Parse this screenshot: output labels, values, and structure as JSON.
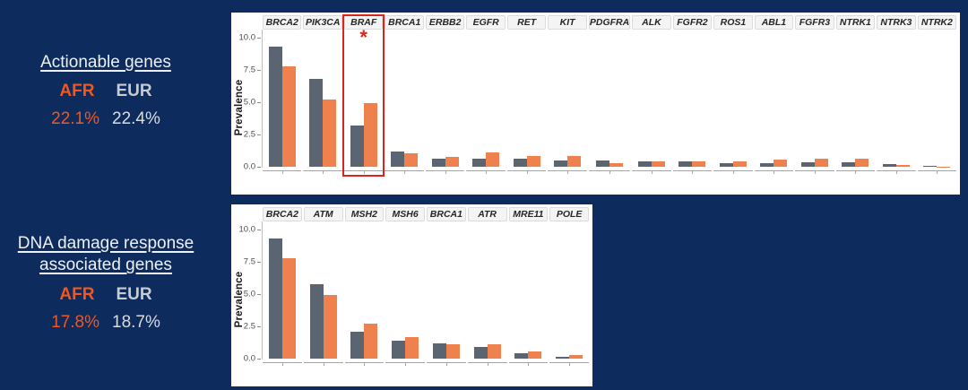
{
  "slide": {
    "background": "#0D2B5C"
  },
  "colors": {
    "navy_background": "#0D2B5C",
    "bar_gray_eur": "#5B6471",
    "bar_orange_afr": "#EF814E",
    "afr_text_orange": "#F2571E",
    "eur_label_gray": "#C7CBD2",
    "eur_value_gray": "#D9DCDF",
    "title_white": "#EDF0F4",
    "highlight_red": "#D8251D"
  },
  "legend_blocks": [
    {
      "id": "actionable",
      "title_lines": [
        "Actionable genes"
      ],
      "groups": [
        {
          "label": "AFR",
          "value": "22.1%"
        },
        {
          "label": "EUR",
          "value": "22.4%"
        }
      ]
    },
    {
      "id": "ddr",
      "title_lines": [
        "DNA damage response",
        "associated genes"
      ],
      "groups": [
        {
          "label": "AFR",
          "value": "17.8%"
        },
        {
          "label": "EUR",
          "value": "18.7%"
        }
      ]
    }
  ],
  "chart_data": [
    {
      "type": "bar",
      "title": "Actionable genes prevalence by gene",
      "ylabel": "Prevalence",
      "ylim": [
        0,
        10.4
      ],
      "grid": false,
      "legend_position": "none",
      "yticks": [
        0,
        2.5,
        5,
        7.5,
        10
      ],
      "ytick_labels": [
        "0.0",
        "2.5",
        "5.0",
        "7.5",
        "10.0"
      ],
      "categories": [
        "BRCA2",
        "PIK3CA",
        "BRAF",
        "BRCA1",
        "ERBB2",
        "EGFR",
        "RET",
        "KIT",
        "PDGFRA",
        "ALK",
        "FGFR2",
        "ROS1",
        "ABL1",
        "FGFR3",
        "NTRK1",
        "NTRK3",
        "NTRK2"
      ],
      "series": [
        {
          "name": "EUR",
          "color": "#5B6471",
          "values": [
            9.3,
            6.8,
            3.2,
            1.15,
            0.65,
            0.65,
            0.65,
            0.5,
            0.5,
            0.4,
            0.4,
            0.3,
            0.3,
            0.35,
            0.35,
            0.2,
            0.05
          ]
        },
        {
          "name": "AFR",
          "color": "#EF814E",
          "values": [
            7.8,
            5.2,
            4.9,
            1.05,
            0.75,
            1.1,
            0.8,
            0.85,
            0.3,
            0.45,
            0.45,
            0.45,
            0.55,
            0.6,
            0.6,
            0.12,
            0.03
          ]
        }
      ],
      "highlight": {
        "category": "BRAF",
        "marker": "*"
      }
    },
    {
      "type": "bar",
      "title": "DNA damage response associated genes prevalence by gene",
      "ylabel": "Prevalence",
      "ylim": [
        0,
        10.4
      ],
      "grid": false,
      "legend_position": "none",
      "yticks": [
        0,
        2.5,
        5,
        7.5,
        10
      ],
      "ytick_labels": [
        "0.0",
        "2.5",
        "5.0",
        "7.5",
        "10.0"
      ],
      "categories": [
        "BRCA2",
        "ATM",
        "MSH2",
        "MSH6",
        "BRCA1",
        "ATR",
        "MRE11",
        "POLE"
      ],
      "series": [
        {
          "name": "EUR",
          "color": "#5B6471",
          "values": [
            9.3,
            5.75,
            2.05,
            1.4,
            1.2,
            0.9,
            0.4,
            0.12
          ]
        },
        {
          "name": "AFR",
          "color": "#EF814E",
          "values": [
            7.8,
            4.9,
            2.7,
            1.7,
            1.1,
            1.1,
            0.55,
            0.25
          ]
        }
      ]
    }
  ]
}
